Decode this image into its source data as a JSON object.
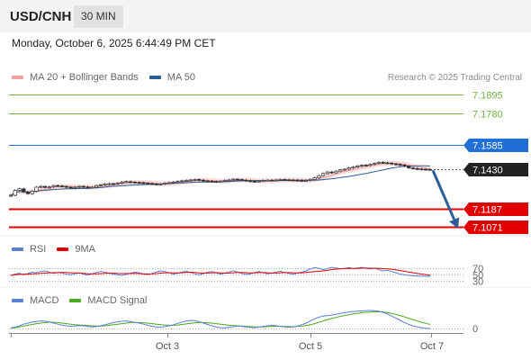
{
  "header": {
    "symbol": "USD/CNH",
    "interval": "30 MIN"
  },
  "datetime": "Monday, October 6, 2025 6:44:49 PM CET",
  "legend_main": {
    "items": [
      {
        "label": "MA 20 + Bollinger Bands",
        "color": "#f4a0a0"
      },
      {
        "label": "MA 50",
        "color": "#2b5d97"
      }
    ],
    "credit": "Research © 2025 Trading Central"
  },
  "legend_rsi": {
    "items": [
      {
        "label": "RSI",
        "color": "#5a7fd6"
      },
      {
        "label": "9MA",
        "color": "#e00000"
      }
    ]
  },
  "legend_macd": {
    "items": [
      {
        "label": "MACD",
        "color": "#5a7fd6"
      },
      {
        "label": "MACD Signal",
        "color": "#4caa1e"
      }
    ]
  },
  "chart_data": {
    "type": "candlestick",
    "ylim": [
      7.1,
      7.2
    ],
    "levels": [
      {
        "label": "7.1895",
        "value": 7.1895,
        "style": "target",
        "color": "#6db33f"
      },
      {
        "label": "7.1780",
        "value": 7.178,
        "style": "target",
        "color": "#6db33f"
      },
      {
        "label": "7.1585",
        "value": 7.1585,
        "style": "resistance",
        "color": "#1f6fd6"
      },
      {
        "label": "7.1430",
        "value": 7.143,
        "style": "last",
        "color": "#222222"
      },
      {
        "label": "7.1187",
        "value": 7.1187,
        "style": "support",
        "color": "#e00000"
      },
      {
        "label": "7.1071",
        "value": 7.1071,
        "style": "support",
        "color": "#e00000"
      }
    ],
    "prices": [
      7.127,
      7.13,
      7.131,
      7.129,
      7.128,
      7.1295,
      7.132,
      7.1325,
      7.1318,
      7.1322,
      7.133,
      7.1328,
      7.1325,
      7.132,
      7.1318,
      7.132,
      7.1325,
      7.1322,
      7.1318,
      7.132,
      7.133,
      7.1335,
      7.134,
      7.1342,
      7.134,
      7.1345,
      7.1352,
      7.1355,
      7.1352,
      7.135,
      7.1348,
      7.1345,
      7.1343,
      7.134,
      7.1338,
      7.134,
      7.1345,
      7.1348,
      7.1352,
      7.1356,
      7.136,
      7.1362,
      7.1365,
      7.1368,
      7.1364,
      7.136,
      7.1358,
      7.1356,
      7.1354,
      7.1358,
      7.1362,
      7.1365,
      7.137,
      7.1368,
      7.1364,
      7.136,
      7.1357,
      7.1356,
      7.1358,
      7.1362,
      7.1364,
      7.1362,
      7.1365,
      7.1368,
      7.1366,
      7.1365,
      7.1364,
      7.1362,
      7.136,
      7.1362,
      7.1368,
      7.1378,
      7.1392,
      7.1405,
      7.1415,
      7.141,
      7.142,
      7.1428,
      7.1432,
      7.144,
      7.1445,
      7.1452,
      7.1458,
      7.1456,
      7.1462,
      7.1468,
      7.1475,
      7.1472,
      7.147,
      7.1465,
      7.1462,
      7.1458,
      7.1452,
      7.144,
      7.1436,
      7.1433,
      7.1432,
      7.1431,
      7.143
    ],
    "bollinger_width": 0.003,
    "forecast": {
      "from": 7.143,
      "to": 7.113
    },
    "rsi": {
      "ticks": [
        "70",
        "50",
        "30"
      ],
      "values": [
        48,
        52,
        55,
        50,
        54,
        58,
        56,
        60,
        62,
        58,
        54,
        57,
        55,
        52,
        50,
        53,
        56,
        52,
        49,
        53,
        57,
        60,
        58,
        55,
        52,
        50,
        48,
        51,
        55,
        58,
        56,
        52,
        50,
        54,
        58,
        62,
        60,
        56,
        52,
        55,
        58,
        61,
        57,
        53,
        50,
        54,
        58,
        60,
        56,
        52,
        55,
        59,
        62,
        58,
        54,
        51,
        53,
        57,
        60,
        56,
        53,
        55,
        58,
        61,
        57,
        54,
        52,
        55,
        58,
        62,
        68,
        72,
        70,
        66,
        69,
        73,
        71,
        68,
        70,
        72,
        69,
        71,
        73,
        70,
        68,
        71,
        66,
        62,
        64,
        60,
        56,
        52,
        50,
        48,
        47,
        46,
        46,
        45,
        45
      ]
    },
    "macd": {
      "ticks": [
        "0"
      ],
      "macd": [
        0.2,
        0.5,
        1.0,
        1.6,
        2.0,
        2.4,
        2.6,
        2.8,
        2.7,
        2.4,
        2.0,
        1.6,
        1.2,
        1.0,
        0.8,
        0.9,
        1.1,
        1.0,
        0.8,
        0.6,
        0.7,
        1.0,
        1.4,
        1.8,
        2.2,
        2.5,
        2.7,
        2.8,
        2.6,
        2.3,
        2.0,
        1.6,
        1.2,
        0.8,
        0.6,
        0.5,
        0.7,
        1.0,
        1.4,
        1.9,
        2.4,
        2.8,
        3.0,
        2.9,
        2.5,
        2.0,
        1.5,
        1.0,
        0.6,
        0.3,
        0.2,
        0.4,
        0.7,
        0.9,
        0.8,
        0.6,
        0.4,
        0.3,
        0.5,
        0.8,
        1.0,
        1.2,
        1.0,
        0.8,
        0.6,
        0.5,
        0.6,
        0.9,
        1.4,
        2.0,
        2.8,
        3.6,
        4.2,
        4.6,
        4.8,
        5.0,
        5.3,
        5.6,
        5.9,
        6.1,
        6.3,
        6.4,
        6.5,
        6.6,
        6.7,
        6.6,
        6.4,
        6.0,
        5.4,
        4.6,
        3.8,
        3.0,
        2.2,
        1.5,
        1.0,
        0.6,
        0.3,
        0.1,
        0.0
      ],
      "signal": [
        0.1,
        0.3,
        0.6,
        0.9,
        1.2,
        1.5,
        1.8,
        2.0,
        2.2,
        2.3,
        2.3,
        2.2,
        2.0,
        1.8,
        1.6,
        1.4,
        1.3,
        1.2,
        1.1,
        1.0,
        0.9,
        0.9,
        1.0,
        1.2,
        1.4,
        1.6,
        1.8,
        2.0,
        2.2,
        2.2,
        2.2,
        2.1,
        2.0,
        1.8,
        1.6,
        1.4,
        1.3,
        1.2,
        1.2,
        1.3,
        1.5,
        1.7,
        1.9,
        2.1,
        2.2,
        2.2,
        2.1,
        2.0,
        1.8,
        1.6,
        1.4,
        1.2,
        1.1,
        1.0,
        0.9,
        0.8,
        0.7,
        0.6,
        0.6,
        0.6,
        0.7,
        0.8,
        0.8,
        0.8,
        0.8,
        0.7,
        0.7,
        0.8,
        0.9,
        1.1,
        1.4,
        1.8,
        2.3,
        2.8,
        3.3,
        3.7,
        4.1,
        4.5,
        4.8,
        5.1,
        5.4,
        5.6,
        5.8,
        6.0,
        6.1,
        6.2,
        6.2,
        6.1,
        5.9,
        5.6,
        5.2,
        4.8,
        4.3,
        3.8,
        3.3,
        2.8,
        2.3,
        1.9,
        1.5
      ]
    },
    "x_ticks": [
      "Oct 3",
      "Oct 5",
      "Oct 7"
    ]
  }
}
